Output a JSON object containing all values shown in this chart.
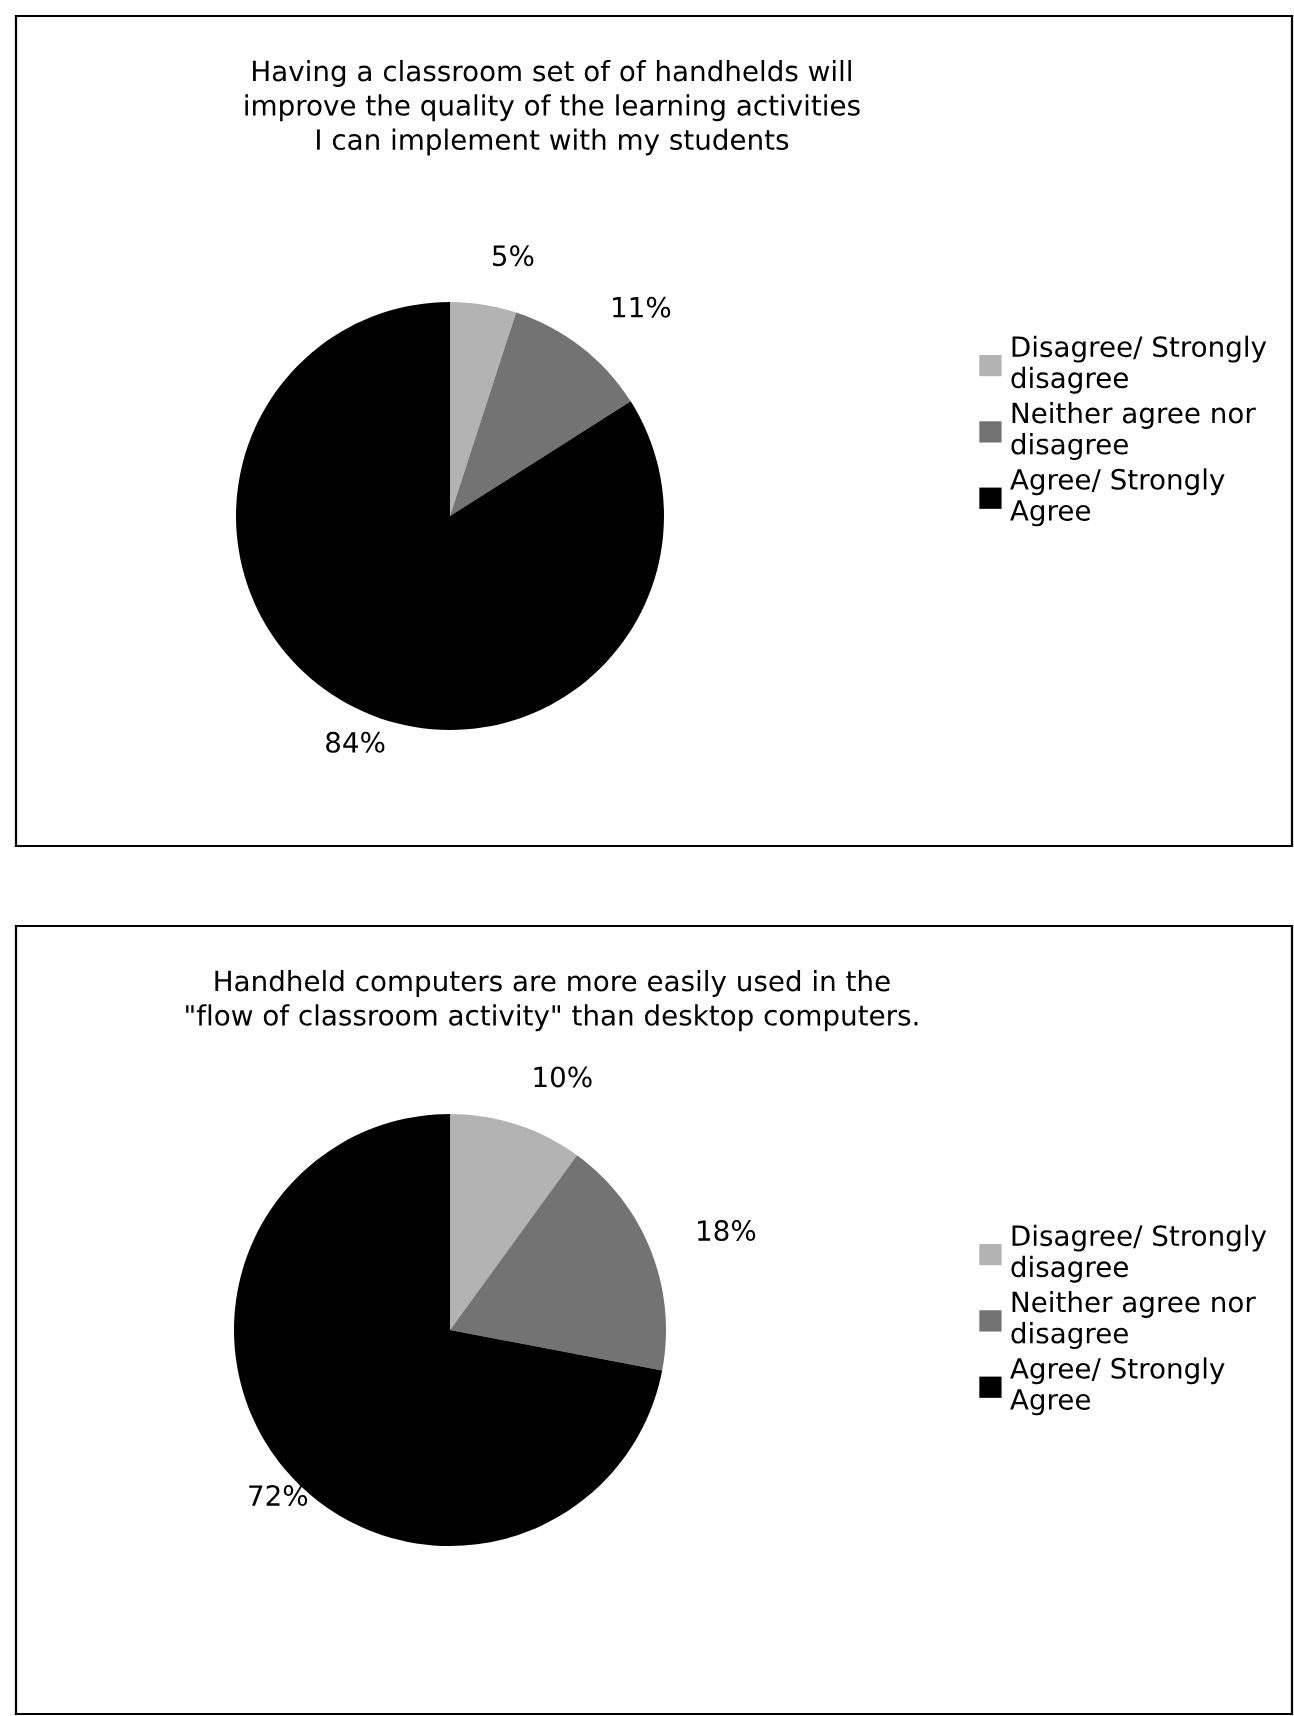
{
  "chart_data": [
    {
      "type": "pie",
      "title": "Having a classroom set of of handhelds will\nimprove the quality of the learning activities\nI can implement with my students",
      "categories": [
        "Disagree/ Strongly disagree",
        "Neither agree nor disagree",
        "Agree/ Strongly Agree"
      ],
      "values": [
        5,
        11,
        84
      ],
      "colors": [
        "#b3b3b3",
        "#737373",
        "#000000"
      ],
      "value_labels": [
        "5%",
        "11%",
        "84%"
      ],
      "legend": "right"
    },
    {
      "type": "pie",
      "title": "Handheld computers are more easily used in the\n\"flow of classroom activity\" than desktop computers.",
      "categories": [
        "Disagree/ Strongly disagree",
        "Neither agree nor disagree",
        "Agree/ Strongly Agree"
      ],
      "values": [
        10,
        18,
        72
      ],
      "colors": [
        "#b3b3b3",
        "#737373",
        "#000000"
      ],
      "value_labels": [
        "10%",
        "18%",
        "72%"
      ],
      "legend": "right"
    }
  ]
}
